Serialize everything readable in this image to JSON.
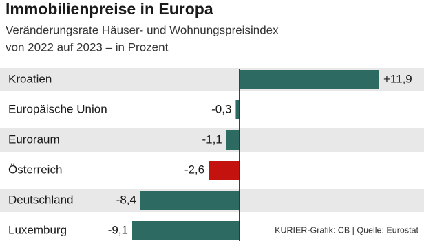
{
  "chart_data": {
    "type": "hbar",
    "title": "Immobilienpreise in Europa",
    "subtitle": [
      "Veränderungsrate Häuser- und Wohnungspreisindex",
      "von 2022 auf 2023 – in Prozent"
    ],
    "categories": [
      "Kroatien",
      "Europäische Union",
      "Euroraum",
      "Österreich",
      "Deutschland",
      "Luxemburg"
    ],
    "values": [
      11.9,
      -0.3,
      -1.1,
      -2.6,
      -8.4,
      -9.1
    ],
    "value_labels": [
      "+11,9",
      "-0,3",
      "-1,1",
      "-2,6",
      "-8,4",
      "-9,1"
    ],
    "colors": [
      "#2d6a62",
      "#2d6a62",
      "#2d6a62",
      "#c4120f",
      "#2d6a62",
      "#2d6a62"
    ],
    "source": "KURIER-Grafik: CB | Quelle: Eurostat"
  }
}
